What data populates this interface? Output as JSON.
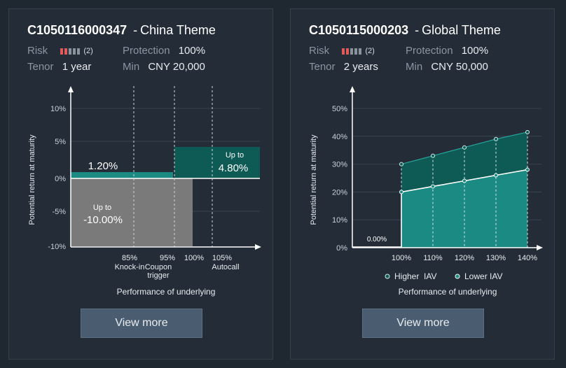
{
  "cards": [
    {
      "code": "C1050116000347",
      "separator": "-",
      "theme": "China Theme",
      "risk_label": "Risk",
      "risk_count": "(2)",
      "risk_level": 2,
      "risk_total": 5,
      "protection_label": "Protection",
      "protection_value": "100%",
      "tenor_label": "Tenor",
      "tenor_value": "1 year",
      "min_label": "Min",
      "min_value": "CNY 20,000",
      "button_label": "View more"
    },
    {
      "code": "C1050115000203",
      "separator": "-",
      "theme": "Global Theme",
      "risk_label": "Risk",
      "risk_count": "(2)",
      "risk_level": 2,
      "risk_total": 5,
      "protection_label": "Protection",
      "protection_value": "100%",
      "tenor_label": "Tenor",
      "tenor_value": "2 years",
      "min_label": "Min",
      "min_value": "CNY 50,000",
      "button_label": "View more"
    }
  ],
  "colors": {
    "risk_on": "#e25a5a",
    "risk_off": "#8a939c",
    "teal_light": "#1a8a82",
    "teal_dark": "#0e5a55",
    "grey_fill": "#7c7c7c"
  },
  "chart_data": [
    {
      "type": "step",
      "ylabel": "Potential return at maturity",
      "xlabel": "Performance of underlying",
      "yticks": [
        "10%",
        "5%",
        "0%",
        "-5%",
        "-10%"
      ],
      "ylim": [
        -10,
        10
      ],
      "x_marks": [
        {
          "value": "85%",
          "label": "Knock-in"
        },
        {
          "value": "95%",
          "label": "Coupon trigger"
        },
        {
          "value": "100%",
          "label": ""
        },
        {
          "value": "105%",
          "label": "Autocall"
        }
      ],
      "regions": [
        {
          "name": "coupon",
          "x_from": 0,
          "x_to": 95,
          "y_from": 0,
          "y_to": 1.2,
          "text": "1.20%"
        },
        {
          "name": "autocall",
          "x_from": 95,
          "x_to": 105,
          "y_from": 0,
          "y_to": 4.8,
          "text_top": "Up to",
          "text": "4.80%"
        },
        {
          "name": "loss",
          "x_from": 0,
          "x_to": 100,
          "y_from": -10,
          "y_to": 0,
          "text_top": "Up to",
          "text": "-10.00%"
        }
      ]
    },
    {
      "type": "area",
      "ylabel": "Potential return at maturity",
      "xlabel": "Performance of underlying",
      "yticks": [
        "50%",
        "40%",
        "30%",
        "20%",
        "10%",
        "0%"
      ],
      "ylim": [
        0,
        50
      ],
      "categories": [
        "100%",
        "110%",
        "120%",
        "130%",
        "140%"
      ],
      "below_100_label": "0.00%",
      "series": [
        {
          "name": "Higher  IAV",
          "values": [
            30,
            33,
            36,
            39,
            41.5
          ]
        },
        {
          "name": "Lower IAV",
          "values": [
            20,
            22,
            24,
            26,
            28
          ]
        }
      ]
    }
  ]
}
